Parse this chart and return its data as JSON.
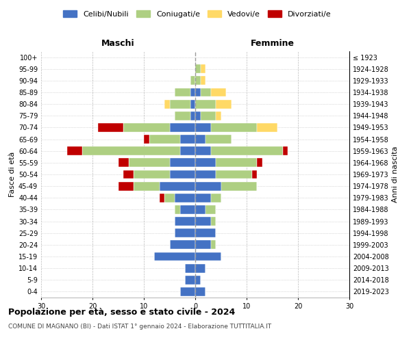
{
  "age_groups": [
    "100+",
    "95-99",
    "90-94",
    "85-89",
    "80-84",
    "75-79",
    "70-74",
    "65-69",
    "60-64",
    "55-59",
    "50-54",
    "45-49",
    "40-44",
    "35-39",
    "30-34",
    "25-29",
    "20-24",
    "15-19",
    "10-14",
    "5-9",
    "0-4"
  ],
  "birth_years": [
    "≤ 1923",
    "1924-1928",
    "1929-1933",
    "1934-1938",
    "1939-1943",
    "1944-1948",
    "1949-1953",
    "1954-1958",
    "1959-1963",
    "1964-1968",
    "1969-1973",
    "1974-1978",
    "1979-1983",
    "1984-1988",
    "1989-1993",
    "1994-1998",
    "1999-2003",
    "2004-2008",
    "2009-2013",
    "2014-2018",
    "2019-2023"
  ],
  "males": {
    "celibi": [
      0,
      0,
      0,
      1,
      1,
      1,
      5,
      3,
      3,
      5,
      5,
      7,
      4,
      3,
      4,
      4,
      5,
      8,
      2,
      2,
      3
    ],
    "coniugati": [
      0,
      0,
      1,
      3,
      4,
      3,
      9,
      6,
      19,
      8,
      7,
      5,
      2,
      1,
      0,
      0,
      0,
      0,
      0,
      0,
      0
    ],
    "vedovi": [
      0,
      0,
      0,
      0,
      1,
      0,
      0,
      0,
      0,
      0,
      0,
      0,
      0,
      0,
      0,
      0,
      0,
      0,
      0,
      0,
      0
    ],
    "divorziati": [
      0,
      0,
      0,
      0,
      0,
      0,
      5,
      1,
      3,
      2,
      2,
      3,
      1,
      0,
      0,
      0,
      0,
      0,
      0,
      0,
      0
    ]
  },
  "females": {
    "nubili": [
      0,
      0,
      0,
      1,
      0,
      1,
      3,
      2,
      3,
      4,
      4,
      5,
      3,
      2,
      3,
      4,
      3,
      5,
      2,
      1,
      2
    ],
    "coniugate": [
      0,
      1,
      1,
      2,
      4,
      3,
      9,
      5,
      14,
      8,
      7,
      7,
      2,
      2,
      1,
      0,
      1,
      0,
      0,
      0,
      0
    ],
    "vedove": [
      0,
      1,
      1,
      3,
      3,
      1,
      4,
      0,
      0,
      0,
      0,
      0,
      0,
      0,
      0,
      0,
      0,
      0,
      0,
      0,
      0
    ],
    "divorziate": [
      0,
      0,
      0,
      0,
      0,
      0,
      0,
      0,
      1,
      1,
      1,
      0,
      0,
      0,
      0,
      0,
      0,
      0,
      0,
      0,
      0
    ]
  },
  "colors": {
    "celibi_nubili": "#4472C4",
    "coniugati": "#AECF82",
    "vedovi": "#FFD966",
    "divorziati": "#C00000"
  },
  "xlim": 30,
  "title": "Popolazione per età, sesso e stato civile - 2024",
  "subtitle": "COMUNE DI MAGNANO (BI) - Dati ISTAT 1° gennaio 2024 - Elaborazione TUTTITALIA.IT",
  "ylabel_left": "Fasce di età",
  "ylabel_right": "Anni di nascita",
  "xlabel_left": "Maschi",
  "xlabel_right": "Femmine",
  "bg_color": "#FFFFFF",
  "bar_line_color": "#FFFFFF",
  "grid_color": "#BBBBBB"
}
